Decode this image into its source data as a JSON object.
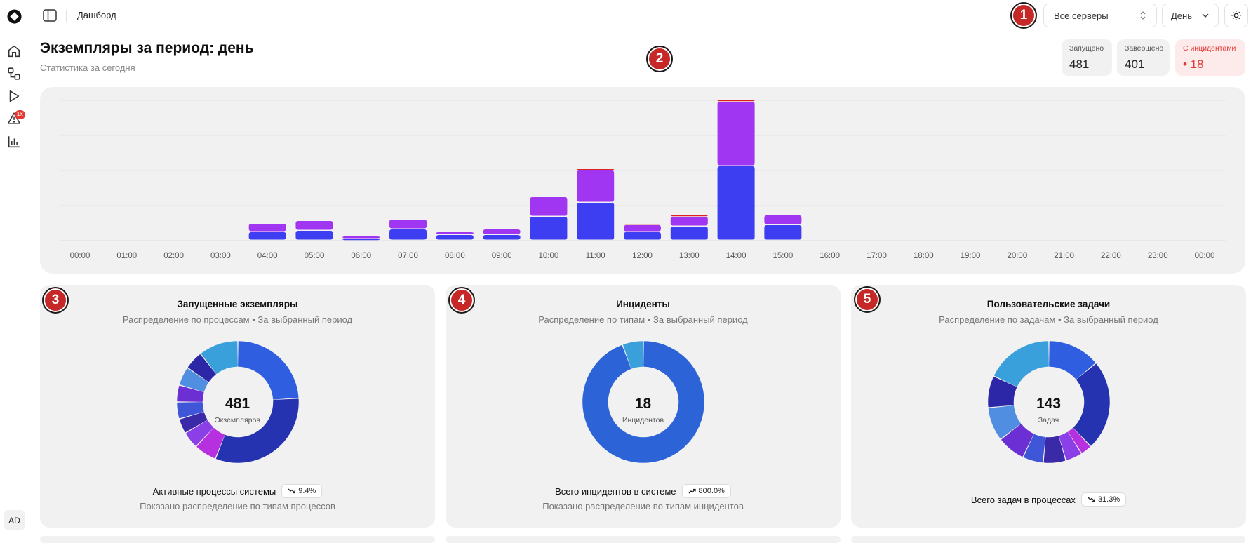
{
  "header": {
    "breadcrumb": "Дашборд",
    "server_select": "Все серверы",
    "period_select": "День"
  },
  "sidebar": {
    "badge": "1K",
    "avatar": "AD",
    "items": [
      "home-icon",
      "processes-icon",
      "play-icon",
      "alert-icon",
      "chart-icon"
    ]
  },
  "markers": [
    "1",
    "2",
    "3",
    "4",
    "5"
  ],
  "page": {
    "title": "Экземпляры за период: день",
    "subtitle": "Статистика за сегодня"
  },
  "stats": [
    {
      "label": "Запущено",
      "value": "481"
    },
    {
      "label": "Завершено",
      "value": "401"
    },
    {
      "label": "С инцидентами",
      "value": "• 18"
    }
  ],
  "colors": {
    "blue": "#3d3df2",
    "purple": "#a035f2",
    "red": "#e02020",
    "alert": "#e53935"
  },
  "chart_data": {
    "type": "bar",
    "stacked": true,
    "categories": [
      "00:00",
      "01:00",
      "02:00",
      "03:00",
      "04:00",
      "05:00",
      "06:00",
      "07:00",
      "08:00",
      "09:00",
      "10:00",
      "11:00",
      "12:00",
      "13:00",
      "14:00",
      "15:00",
      "16:00",
      "17:00",
      "18:00",
      "19:00",
      "20:00",
      "21:00",
      "22:00",
      "23:00",
      "00:00"
    ],
    "series": [
      {
        "values": [
          0,
          0,
          0,
          0,
          6,
          7,
          1,
          8,
          4,
          4,
          17,
          27,
          6,
          10,
          53,
          11,
          0,
          0,
          0,
          0,
          0,
          0,
          0,
          0,
          0
        ]
      },
      {
        "values": [
          0,
          0,
          0,
          0,
          6,
          7,
          2,
          7,
          2,
          4,
          14,
          23,
          5,
          7,
          46,
          7,
          0,
          0,
          0,
          0,
          0,
          0,
          0,
          0,
          0
        ]
      },
      {
        "values": [
          0,
          0,
          0,
          0,
          0,
          0,
          0,
          0,
          0,
          0,
          0,
          1,
          1,
          1,
          1,
          0,
          0,
          0,
          0,
          0,
          0,
          0,
          0,
          0,
          0
        ]
      }
    ],
    "ylim": [
      0,
      100
    ],
    "grid": true,
    "legend": "none"
  },
  "cards": [
    {
      "title": "Запущенные экземпляры",
      "subtitle": "Распределение по процессам • За выбранный период",
      "center_value": "481",
      "center_label": "Экземпляров",
      "footer": "Активные процессы системы",
      "trend": "9.4%",
      "trend_dir": "down",
      "note": "Показано распределение по типам процессов",
      "slices": [
        {
          "value": 24,
          "color": "#2f5fe0"
        },
        {
          "value": 32,
          "color": "#2633b0"
        },
        {
          "value": 6,
          "color": "#b730e0"
        },
        {
          "value": 4.5,
          "color": "#8a40e6"
        },
        {
          "value": 4,
          "color": "#3a2aa8"
        },
        {
          "value": 4.5,
          "color": "#3f56d8"
        },
        {
          "value": 4.5,
          "color": "#6b2fd4"
        },
        {
          "value": 5,
          "color": "#4f8ee0"
        },
        {
          "value": 5,
          "color": "#2c27a6"
        },
        {
          "value": 10.5,
          "color": "#3aa0dc"
        }
      ]
    },
    {
      "title": "Инциденты",
      "subtitle": "Распределение по типам • За выбранный период",
      "center_value": "18",
      "center_label": "Инцидентов",
      "footer": "Всего инцидентов в системе",
      "trend": "800.0%",
      "trend_dir": "up",
      "note": "Показано распределение по типам инцидентов",
      "slices": [
        {
          "value": 94.4,
          "color": "#2c64d8"
        },
        {
          "value": 5.6,
          "color": "#3aa0dc"
        }
      ]
    },
    {
      "title": "Пользовательские задачи",
      "subtitle": "Распределение по задачам • За выбранный период",
      "center_value": "143",
      "center_label": "Задач",
      "footer": "Всего задач в процессах",
      "trend": "31.3%",
      "trend_dir": "down",
      "note": "",
      "slices": [
        {
          "value": 14,
          "color": "#2f5fe0"
        },
        {
          "value": 24,
          "color": "#2633b0"
        },
        {
          "value": 3,
          "color": "#b730e0"
        },
        {
          "value": 4.5,
          "color": "#8a40e6"
        },
        {
          "value": 6,
          "color": "#3a2aa8"
        },
        {
          "value": 5.5,
          "color": "#3f56d8"
        },
        {
          "value": 7.5,
          "color": "#6b2fd4"
        },
        {
          "value": 9,
          "color": "#4f8ee0"
        },
        {
          "value": 8.5,
          "color": "#2c27a6"
        },
        {
          "value": 18,
          "color": "#3aa0dc"
        }
      ]
    }
  ]
}
